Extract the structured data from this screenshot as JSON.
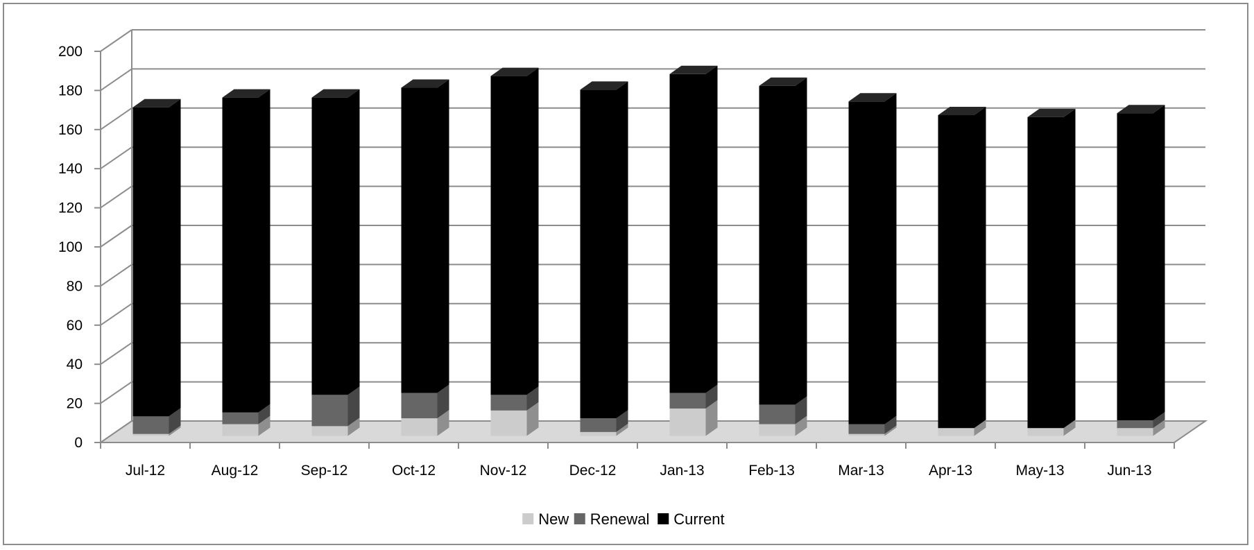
{
  "chart_data": {
    "type": "bar",
    "stacked": true,
    "three_d": true,
    "categories": [
      "Jul-12",
      "Aug-12",
      "Sep-12",
      "Oct-12",
      "Nov-12",
      "Dec-12",
      "Jan-13",
      "Feb-13",
      "Mar-13",
      "Apr-13",
      "May-13",
      "Jun-13"
    ],
    "series": [
      {
        "name": "New",
        "values": [
          1,
          6,
          5,
          9,
          13,
          2,
          14,
          6,
          1,
          4,
          4,
          4
        ]
      },
      {
        "name": "Renewal",
        "values": [
          9,
          6,
          16,
          13,
          8,
          7,
          8,
          10,
          5,
          0,
          0,
          4
        ]
      },
      {
        "name": "Current",
        "values": [
          158,
          161,
          152,
          156,
          163,
          168,
          163,
          163,
          165,
          160,
          159,
          157
        ]
      }
    ],
    "ylim": [
      0,
      200
    ],
    "yticks": [
      "0",
      "20",
      "40",
      "60",
      "80",
      "100",
      "120",
      "140",
      "160",
      "180",
      "200"
    ],
    "grid": true,
    "legend_position": "bottom",
    "colors": {
      "New": "#cccccc",
      "Renewal": "#666666",
      "Current": "#000000",
      "grid": "#8c8c8c",
      "floor": "#d9d9d9"
    }
  }
}
